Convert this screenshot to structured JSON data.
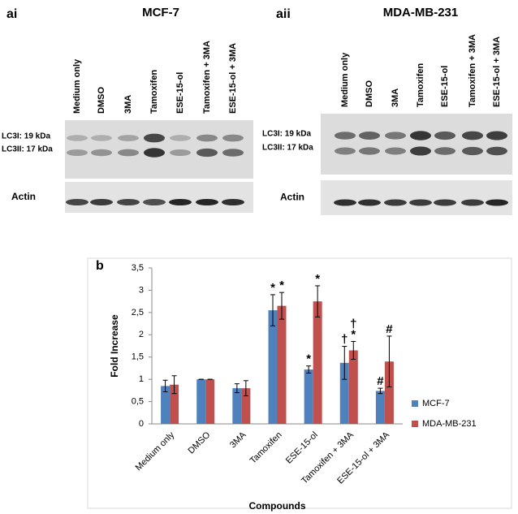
{
  "panels": [
    {
      "label": "ai",
      "title": "MCF-7",
      "lanes": [
        "Medium only",
        "DMSO",
        "3MA",
        "Tamoxifen",
        "ESE-15-ol",
        "Tamoxifen + 3MA",
        "ESE-15-ol + 3MA"
      ],
      "bands": [
        "LC3I: 19 kDa",
        "LC3II: 17 kDa"
      ],
      "loading": "Actin"
    },
    {
      "label": "aii",
      "title": "MDA-MB-231",
      "lanes": [
        "Medium only",
        "DMSO",
        "3MA",
        "Tamoxifen",
        "ESE-15-ol",
        "Tamoxifen + 3MA",
        "ESE-15-ol + 3MA"
      ],
      "bands": [
        "LC3I: 19 kDa",
        "LC3II: 17 kDa"
      ],
      "loading": "Actin"
    }
  ],
  "chart_data": {
    "type": "bar",
    "label": "b",
    "ylabel": "Fold Increase",
    "xlabel": "Compounds",
    "categories": [
      "Medium only",
      "DMSO",
      "3MA",
      "Tamoxifen",
      "ESE-15-ol",
      "Tamoxifen + 3MA",
      "ESE-15-ol + 3MA"
    ],
    "series": [
      {
        "name": "MCF-7",
        "color": "#4f81bd",
        "values": [
          0.85,
          1.0,
          0.8,
          2.55,
          1.22,
          1.37,
          0.74
        ],
        "errors": [
          0.13,
          0,
          0.1,
          0.35,
          0.08,
          0.37,
          0.06
        ],
        "markers": [
          null,
          null,
          null,
          [
            "*"
          ],
          [
            "*"
          ],
          [
            "†"
          ],
          [
            "#"
          ]
        ]
      },
      {
        "name": "MDA-MB-231",
        "color": "#c0504d",
        "values": [
          0.88,
          1.0,
          0.8,
          2.65,
          2.75,
          1.65,
          1.4
        ],
        "errors": [
          0.2,
          0,
          0.17,
          0.3,
          0.35,
          0.2,
          0.57
        ],
        "markers": [
          null,
          null,
          null,
          [
            "*"
          ],
          [
            "*"
          ],
          [
            "†",
            "*"
          ],
          [
            "#"
          ]
        ]
      }
    ],
    "ylim": [
      0,
      3.5
    ],
    "yticks": [
      0,
      {
        "value": 0.5,
        "label": "0,5"
      },
      1,
      {
        "value": 1.5,
        "label": "1,5"
      },
      2,
      {
        "value": 2.5,
        "label": "2,5"
      },
      3,
      {
        "value": 3.5,
        "label": "3,5"
      }
    ],
    "legend": "right"
  }
}
